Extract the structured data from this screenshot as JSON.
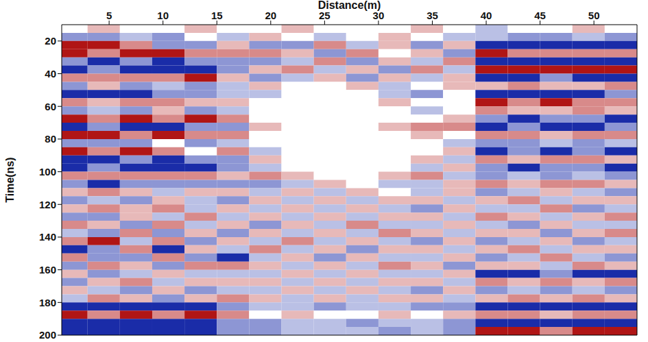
{
  "chart_data": {
    "type": "heatmap",
    "xlabel": "Distance(m)",
    "ylabel": "Time(ns)",
    "xlim": [
      0.6,
      54
    ],
    "xticks": [
      5,
      10,
      15,
      20,
      25,
      30,
      35,
      40,
      45,
      50
    ],
    "ylim": [
      10,
      200
    ],
    "yticks": [
      20,
      40,
      60,
      80,
      100,
      120,
      140,
      160,
      180,
      200
    ],
    "grid": false,
    "colors": [
      "#1a2ca8",
      "#ffffff",
      "#b01515"
    ],
    "zlim": [
      -1,
      1
    ],
    "x_bins": [
      0,
      3,
      6,
      9,
      12,
      15,
      18,
      21,
      24,
      27,
      30,
      33,
      36,
      39,
      42,
      45,
      48,
      51,
      54
    ],
    "y_bins": [
      10,
      15,
      20,
      25,
      30,
      35,
      40,
      45,
      50,
      55,
      60,
      65,
      70,
      75,
      80,
      85,
      90,
      95,
      100,
      105,
      110,
      115,
      120,
      125,
      130,
      135,
      140,
      145,
      150,
      155,
      160,
      165,
      170,
      175,
      180,
      185,
      190,
      195,
      200
    ],
    "cells": [
      [
        0,
        0.3,
        0,
        0,
        0.3,
        0,
        0,
        0.3,
        0,
        0,
        0,
        0.3,
        0,
        -0.3,
        0,
        0,
        0.3,
        0
      ],
      [
        -0.5,
        -0.5,
        -0.3,
        -0.5,
        0,
        -0.3,
        0.3,
        0,
        -0.3,
        0,
        0.3,
        0,
        -0.3,
        -0.3,
        -0.5,
        -0.5,
        -0.3,
        -0.5
      ],
      [
        1,
        1,
        0.5,
        -0.5,
        -0.5,
        0.3,
        -0.5,
        -0.5,
        0.5,
        -0.3,
        0.3,
        -0.5,
        0.3,
        -1,
        -1,
        -1,
        -1,
        -1
      ],
      [
        1,
        0.5,
        1,
        1,
        0.5,
        0.5,
        0.5,
        0.3,
        -0.5,
        0.5,
        0,
        0.3,
        -0.5,
        1,
        0.5,
        0.5,
        0.5,
        0.5
      ],
      [
        -0.5,
        -1,
        -0.5,
        -1,
        -0.5,
        -0.5,
        -0.5,
        -0.3,
        0.5,
        -0.5,
        0.3,
        -0.3,
        0.5,
        -1,
        -1,
        -1,
        -1,
        -1
      ],
      [
        -1,
        -0.5,
        -1,
        -1,
        -1,
        -0.5,
        0.3,
        0.5,
        -0.3,
        0.3,
        -0.5,
        0.5,
        -0.3,
        1,
        1,
        1,
        1,
        1
      ],
      [
        0.5,
        0.5,
        0.5,
        0.5,
        1,
        0.3,
        -0.5,
        -0.3,
        0.3,
        -0.5,
        0.3,
        -0.3,
        0.3,
        -1,
        -1,
        -0.5,
        -1,
        -1
      ],
      [
        -0.5,
        0.3,
        -0.5,
        -0.3,
        -0.5,
        -0.3,
        0.3,
        0,
        0,
        0.3,
        -0.3,
        0,
        0.3,
        0.3,
        0.5,
        0.3,
        0.3,
        0.5
      ],
      [
        -1,
        -1,
        -1,
        -0.5,
        -0.5,
        -0.3,
        -0.3,
        0,
        0,
        0,
        -0.3,
        -0.5,
        0,
        -1,
        -1,
        -1,
        -1,
        -0.5
      ],
      [
        0.5,
        0.3,
        0.5,
        0.5,
        0.3,
        0.3,
        0,
        0,
        0,
        0,
        0.3,
        0,
        0,
        1,
        0.5,
        1,
        0.5,
        0.5
      ],
      [
        -0.5,
        -0.3,
        -0.5,
        0.3,
        -0.5,
        -0.3,
        0,
        0,
        0,
        0,
        0,
        -0.3,
        0,
        0.5,
        0.3,
        0.3,
        0.5,
        0.3
      ],
      [
        1,
        0.5,
        1,
        0.5,
        1,
        0.5,
        0,
        0,
        0,
        0,
        0,
        0,
        0.3,
        -0.5,
        -1,
        -0.5,
        -0.5,
        -1
      ],
      [
        -1,
        -0.5,
        -1,
        -1,
        -0.5,
        -0.5,
        0.3,
        0,
        0,
        0,
        0.3,
        0.5,
        0.5,
        -1,
        -0.5,
        -1,
        -1,
        -0.5
      ],
      [
        1,
        1,
        0.5,
        1,
        0.5,
        0.5,
        0,
        0,
        0,
        0,
        0,
        0.3,
        0,
        0.5,
        0.5,
        0.3,
        0.5,
        0.5
      ],
      [
        -0.5,
        -0.5,
        -0.5,
        0,
        -0.5,
        -0.3,
        0,
        0,
        0,
        0,
        0,
        0,
        -0.3,
        -0.5,
        -0.5,
        -0.3,
        -0.5,
        -0.3
      ],
      [
        1,
        0.5,
        1,
        0.5,
        0,
        0.5,
        -0.3,
        0,
        0,
        0,
        0,
        0,
        0.3,
        -1,
        -0.5,
        -1,
        -0.5,
        -1
      ],
      [
        -1,
        -1,
        -0.5,
        -1,
        -0.5,
        -0.5,
        0.3,
        0,
        0,
        0,
        0,
        0.3,
        -0.3,
        0.5,
        0.3,
        0.5,
        0.5,
        0.3
      ],
      [
        -1,
        -0.5,
        -1,
        -1,
        -1,
        -0.5,
        -0.3,
        0,
        0,
        0,
        0,
        -0.3,
        0.3,
        -0.5,
        -1,
        -0.5,
        -0.5,
        -1
      ],
      [
        0.5,
        0.5,
        0.5,
        0.5,
        0.5,
        0.3,
        0.5,
        0.3,
        0,
        0,
        0.3,
        0.5,
        -0.3,
        -0.5,
        -0.3,
        -0.5,
        -0.3,
        -0.5
      ],
      [
        -0.5,
        -1,
        -0.5,
        -0.5,
        -0.5,
        -0.5,
        -0.5,
        -0.3,
        0.3,
        0,
        -0.3,
        -0.3,
        0.3,
        0.5,
        0.3,
        0.5,
        0.5,
        0.3
      ],
      [
        0.3,
        0.5,
        0.3,
        -0.3,
        0.3,
        0.3,
        -0.3,
        0.3,
        -0.3,
        0.3,
        0,
        -0.3,
        0.3,
        -0.5,
        -0.3,
        0.3,
        -0.3,
        -0.5
      ],
      [
        -0.5,
        -0.3,
        -0.5,
        0.3,
        -0.3,
        -0.5,
        0.3,
        -0.3,
        0.3,
        -0.3,
        0.3,
        0.3,
        -0.3,
        0.3,
        0.5,
        -0.3,
        0.3,
        0.3
      ],
      [
        0.3,
        0.5,
        0.3,
        0.5,
        -0.3,
        0.3,
        -0.3,
        0.3,
        -0.3,
        0.3,
        -0.3,
        -0.5,
        0.3,
        -0.3,
        -0.3,
        0.5,
        -0.5,
        -0.3
      ],
      [
        -0.5,
        -0.5,
        0.3,
        -0.3,
        0.5,
        -0.3,
        0.3,
        -0.3,
        0.3,
        -0.3,
        0.3,
        0.3,
        -0.3,
        0.5,
        0.3,
        -0.3,
        0.3,
        0.5
      ],
      [
        0.5,
        0.3,
        -0.5,
        0.5,
        -0.3,
        0.3,
        -0.5,
        0.3,
        -0.3,
        0.5,
        -0.3,
        -0.3,
        0.3,
        -0.3,
        -0.5,
        0.3,
        -0.3,
        -0.3
      ],
      [
        -0.3,
        -0.5,
        0.5,
        -0.5,
        0.3,
        -0.5,
        0.3,
        -0.3,
        0.3,
        -0.3,
        0.5,
        0.3,
        -0.3,
        0.3,
        0.3,
        -0.5,
        0.3,
        0.5
      ],
      [
        0.5,
        1,
        -0.3,
        0.5,
        -0.5,
        0.3,
        -0.3,
        0.5,
        -0.3,
        0.3,
        -0.3,
        -0.5,
        0.3,
        -0.5,
        -0.3,
        0.3,
        -0.5,
        -0.3
      ],
      [
        -1,
        -0.5,
        0.5,
        -1,
        0.3,
        -0.3,
        0.5,
        -0.3,
        0.3,
        -0.5,
        0.3,
        0.3,
        -0.3,
        0.3,
        0.5,
        -0.3,
        0.3,
        0.3
      ],
      [
        0.5,
        -0.5,
        -0.5,
        0.5,
        -0.5,
        -1,
        -0.3,
        0.3,
        -0.5,
        0.3,
        -0.3,
        -0.3,
        0.3,
        -0.5,
        -0.3,
        0.5,
        -0.3,
        -0.5
      ],
      [
        -0.5,
        0.5,
        0.3,
        -0.5,
        0.5,
        0.5,
        0.3,
        -0.3,
        0.3,
        -0.3,
        0.5,
        0.3,
        -0.5,
        0.3,
        0.3,
        -0.3,
        0.5,
        0.3
      ],
      [
        0.3,
        -0.5,
        -0.3,
        0.3,
        -0.3,
        -0.3,
        -0.3,
        0.3,
        -0.3,
        0.3,
        -0.3,
        -0.3,
        0.3,
        -1,
        -1,
        -0.5,
        -1,
        -1
      ],
      [
        -0.5,
        0.3,
        0.5,
        -0.3,
        0.3,
        0.3,
        0.3,
        -0.3,
        0.3,
        -0.3,
        0.3,
        0.3,
        -0.3,
        0.5,
        0.3,
        0.5,
        0.3,
        0.5
      ],
      [
        0.3,
        -0.3,
        -0.5,
        0.3,
        -0.5,
        -0.3,
        -0.3,
        0.3,
        -0.3,
        0.3,
        -0.3,
        -0.5,
        0.3,
        -0.5,
        -0.3,
        -0.5,
        -0.3,
        -0.5
      ],
      [
        -0.3,
        0.5,
        0.3,
        -0.5,
        0.3,
        0.5,
        0.3,
        -0.3,
        0.3,
        -0.3,
        0.3,
        0.3,
        -0.3,
        0.3,
        0.5,
        0.3,
        0.5,
        0.3
      ],
      [
        -1,
        -1,
        -1,
        -1,
        -1,
        -0.5,
        -0.3,
        -0.3,
        -0.5,
        -0.3,
        -0.3,
        -0.5,
        -0.5,
        -1,
        -1,
        -1,
        -1,
        -1
      ],
      [
        1,
        0.5,
        1,
        0.5,
        1,
        0.5,
        0,
        0.3,
        0,
        0,
        0.3,
        0,
        0.3,
        0.5,
        0.5,
        0.3,
        0.5,
        0.5
      ],
      [
        -1,
        -1,
        -1,
        -1,
        -1,
        -0.5,
        -0.5,
        -0.3,
        -0.3,
        -0.5,
        -0.3,
        -0.3,
        -0.5,
        -1,
        -1,
        -1,
        -1,
        -1
      ],
      [
        -1,
        -1,
        -1,
        -1,
        -1,
        -0.5,
        -0.5,
        -0.3,
        -0.3,
        -0.3,
        -0.5,
        -0.3,
        -0.5,
        1,
        1,
        0.5,
        1,
        1
      ]
    ]
  }
}
